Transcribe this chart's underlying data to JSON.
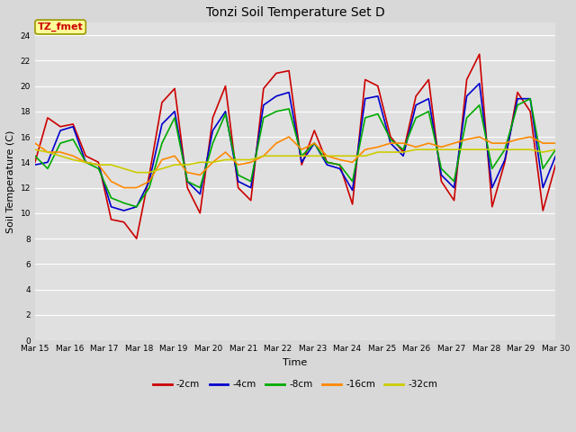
{
  "title": "Tonzi Soil Temperature Set D",
  "xlabel": "Time",
  "ylabel": "Soil Temperature (C)",
  "annotation": "TZ_fmet",
  "ylim": [
    0,
    25
  ],
  "yticks": [
    0,
    2,
    4,
    6,
    8,
    10,
    12,
    14,
    16,
    18,
    20,
    22,
    24
  ],
  "x_labels": [
    "Mar 15",
    "Mar 16",
    "Mar 17",
    "Mar 18",
    "Mar 19",
    "Mar 20",
    "Mar 21",
    "Mar 22",
    "Mar 23",
    "Mar 24",
    "Mar 25",
    "Mar 26",
    "Mar 27",
    "Mar 28",
    "Mar 29",
    "Mar 30"
  ],
  "series": [
    {
      "name": "-2cm",
      "color": "#cc0000",
      "lw": 1.2,
      "y": [
        14.0,
        17.5,
        16.8,
        17.0,
        14.5,
        14.0,
        9.5,
        9.3,
        8.0,
        13.0,
        18.7,
        19.8,
        12.0,
        10.0,
        17.5,
        20.0,
        12.0,
        11.0,
        19.8,
        21.0,
        21.2,
        13.8,
        16.5,
        14.0,
        13.8,
        10.7,
        20.5,
        20.0,
        16.0,
        14.8,
        19.2,
        20.5,
        12.5,
        11.0,
        20.5,
        22.5,
        10.5,
        14.0,
        19.5,
        18.0,
        10.2,
        13.8
      ]
    },
    {
      "name": "-4cm",
      "color": "#0000cc",
      "lw": 1.2,
      "y": [
        13.8,
        14.0,
        16.5,
        16.8,
        14.0,
        13.8,
        10.5,
        10.2,
        10.5,
        12.5,
        17.0,
        18.0,
        12.5,
        11.5,
        16.5,
        18.0,
        12.5,
        12.0,
        18.5,
        19.2,
        19.5,
        14.0,
        15.5,
        13.8,
        13.5,
        11.8,
        19.0,
        19.2,
        15.5,
        14.5,
        18.5,
        19.0,
        13.0,
        12.0,
        19.2,
        20.2,
        12.0,
        14.2,
        19.0,
        19.0,
        12.0,
        14.5
      ]
    },
    {
      "name": "-8cm",
      "color": "#00aa00",
      "lw": 1.2,
      "y": [
        14.5,
        13.5,
        15.5,
        15.8,
        14.0,
        13.5,
        11.2,
        10.8,
        10.5,
        12.0,
        15.5,
        17.5,
        12.5,
        12.0,
        15.5,
        17.8,
        13.0,
        12.5,
        17.5,
        18.0,
        18.2,
        14.5,
        15.5,
        14.0,
        13.8,
        12.5,
        17.5,
        17.8,
        15.8,
        15.0,
        17.5,
        18.0,
        13.5,
        12.5,
        17.5,
        18.5,
        13.5,
        15.0,
        18.5,
        19.0,
        13.5,
        15.0
      ]
    },
    {
      "name": "-16cm",
      "color": "#ff8800",
      "lw": 1.2,
      "y": [
        15.5,
        14.8,
        14.8,
        14.5,
        14.0,
        13.8,
        12.5,
        12.0,
        12.0,
        12.5,
        14.2,
        14.5,
        13.2,
        13.0,
        14.0,
        14.8,
        13.8,
        14.0,
        14.5,
        15.5,
        16.0,
        15.0,
        15.5,
        14.5,
        14.2,
        14.0,
        15.0,
        15.2,
        15.5,
        15.5,
        15.2,
        15.5,
        15.2,
        15.5,
        15.8,
        16.0,
        15.5,
        15.5,
        15.8,
        16.0,
        15.5,
        15.5
      ]
    },
    {
      "name": "-32cm",
      "color": "#cccc00",
      "lw": 1.2,
      "y": [
        15.0,
        14.8,
        14.5,
        14.2,
        14.0,
        13.8,
        13.8,
        13.5,
        13.2,
        13.2,
        13.5,
        13.8,
        13.8,
        14.0,
        14.0,
        14.2,
        14.2,
        14.2,
        14.5,
        14.5,
        14.5,
        14.5,
        14.5,
        14.5,
        14.5,
        14.5,
        14.5,
        14.8,
        14.8,
        14.8,
        15.0,
        15.0,
        15.0,
        15.0,
        15.0,
        15.0,
        15.0,
        15.0,
        15.0,
        15.0,
        14.8,
        15.0
      ]
    }
  ],
  "bg_color": "#d8d8d8",
  "plot_bg": "#e0e0e0",
  "grid_color": "#ffffff",
  "annotation_bg": "#ffff99",
  "annotation_fg": "#cc0000",
  "annotation_border": "#999900",
  "title_fontsize": 10,
  "tick_fontsize": 6.5,
  "ylabel_fontsize": 8,
  "xlabel_fontsize": 8
}
